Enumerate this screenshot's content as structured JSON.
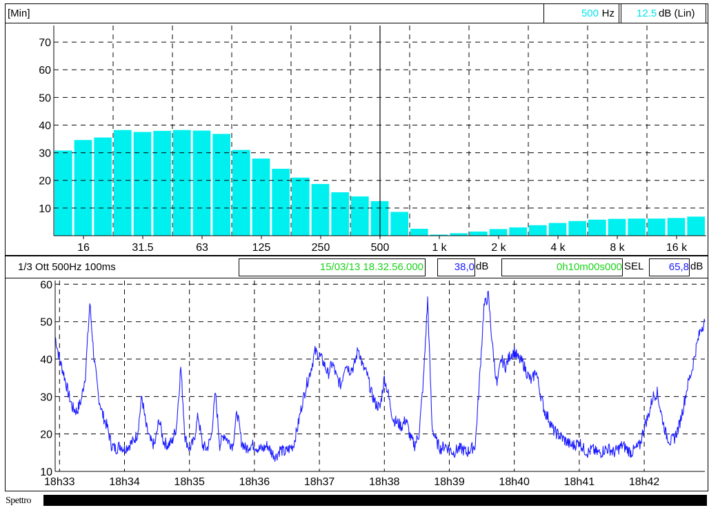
{
  "top_bar": {
    "mode": "[Min]",
    "freq_value": "500",
    "freq_unit": "Hz",
    "level_value": "12.5",
    "level_unit": "dB (Lin)"
  },
  "mid_bar": {
    "mode": "1/3 Ott 500Hz 100ms",
    "timestamp": "15/03/13 18.32.56.000",
    "level_value": "38,0",
    "level_unit": "dB",
    "duration": "0h10m00s000",
    "sel_label": "SEL",
    "sel_value": "65,8",
    "sel_unit": "dB"
  },
  "bottom_bar": {
    "label": "Spettro"
  },
  "colors": {
    "bar_fill": "#00f0f0",
    "line": "#1a1aff",
    "cursor_text": "#00e5ee",
    "green_text": "#19d319",
    "blue_text": "#1a1aff"
  },
  "chart_data": [
    {
      "type": "bar",
      "title": "",
      "xlabel": "",
      "ylabel": "",
      "scale_x": "log (1/3 octave bands)",
      "ylim": [
        0,
        76
      ],
      "yticks": [
        "10",
        "20",
        "30",
        "40",
        "50",
        "60",
        "70"
      ],
      "xtick_labels": [
        "16",
        "31.5",
        "63",
        "125",
        "250",
        "500",
        "1 k",
        "2 k",
        "4 k",
        "8 k",
        "16 k"
      ],
      "grid": true,
      "cursor_band": "500",
      "categories": [
        "12.5",
        "16",
        "20",
        "25",
        "31.5",
        "40",
        "50",
        "63",
        "80",
        "100",
        "125",
        "160",
        "200",
        "250",
        "315",
        "400",
        "500",
        "630",
        "800",
        "1k",
        "1.25k",
        "1.6k",
        "2k",
        "2.5k",
        "3.15k",
        "4k",
        "5k",
        "6.3k",
        "8k",
        "10k",
        "12.5k",
        "16k",
        "20k"
      ],
      "values": [
        30.8,
        34.6,
        35.5,
        38.2,
        37.5,
        37.9,
        38.2,
        38.0,
        36.8,
        31.0,
        27.9,
        24.2,
        21.0,
        18.7,
        15.7,
        14.2,
        12.5,
        8.6,
        2.5,
        0.4,
        0.9,
        1.5,
        2.4,
        3.0,
        3.8,
        4.6,
        5.3,
        5.8,
        6.1,
        6.2,
        6.2,
        6.4,
        6.9
      ]
    },
    {
      "type": "line",
      "title": "",
      "xlabel": "",
      "ylabel": "",
      "ylim": [
        10,
        61
      ],
      "yticks": [
        "10",
        "20",
        "30",
        "40",
        "50",
        "60"
      ],
      "x_ticks": [
        "18h33",
        "18h34",
        "18h35",
        "18h36",
        "18h37",
        "18h38",
        "18h39",
        "18h40",
        "18h41",
        "18h42"
      ],
      "x_range_seconds_from_18h32m56s": [
        0,
        600
      ],
      "grid": true,
      "series": [
        {
          "x": [
            0,
            4,
            8,
            12,
            16,
            20,
            24,
            28,
            32,
            36,
            40,
            44,
            48,
            52,
            56,
            60,
            64,
            68,
            72,
            76,
            80,
            84,
            88,
            92,
            96,
            100,
            104,
            108,
            112,
            116,
            120,
            124,
            128,
            132,
            136,
            140,
            144,
            148,
            152,
            156,
            160,
            164,
            168,
            172,
            176,
            180,
            184,
            188,
            192,
            196,
            200,
            204,
            208,
            212,
            216,
            220,
            224,
            228,
            232,
            236,
            240,
            244,
            248,
            252,
            256,
            260,
            264,
            268,
            272,
            276,
            280,
            284,
            288,
            292,
            296,
            300,
            304,
            308,
            312,
            316,
            320,
            324,
            328,
            332,
            336,
            340,
            344,
            348,
            352,
            356,
            360,
            364,
            368,
            372,
            376,
            380,
            384,
            388,
            392,
            396,
            400,
            404,
            408,
            412,
            416,
            420,
            424,
            428,
            432,
            436,
            440,
            444,
            448,
            452,
            456,
            460,
            464,
            468,
            472,
            476,
            480,
            484,
            488,
            492,
            496,
            500,
            504,
            508,
            512,
            516,
            520,
            524,
            528,
            532,
            536,
            540,
            544,
            548,
            552,
            556,
            560,
            564,
            568,
            572,
            576,
            580,
            584,
            588,
            592,
            596,
            600
          ],
          "values": [
            46,
            40,
            36,
            31,
            27,
            26,
            29,
            36,
            55,
            40,
            30,
            25,
            22,
            17,
            16,
            17,
            16,
            17,
            18,
            20,
            30,
            22,
            18,
            17,
            24,
            18,
            17,
            18,
            22,
            38,
            19,
            16,
            18,
            25,
            17,
            16,
            19,
            31,
            17,
            20,
            18,
            17,
            26,
            18,
            16,
            17,
            17,
            16,
            16,
            17,
            15,
            14,
            16,
            15,
            16,
            17,
            22,
            28,
            33,
            37,
            42,
            41,
            39,
            36,
            39,
            35,
            33,
            39,
            37,
            38,
            43,
            38,
            36,
            31,
            28,
            27,
            35,
            30,
            24,
            23,
            22,
            24,
            19,
            17,
            20,
            34,
            56,
            22,
            18,
            16,
            17,
            16,
            15,
            16,
            16,
            15,
            16,
            17,
            35,
            54,
            57,
            43,
            33,
            40,
            38,
            41,
            42,
            40,
            39,
            36,
            34,
            37,
            31,
            26,
            24,
            21,
            20,
            19,
            18,
            17,
            17,
            18,
            16,
            15,
            16,
            15,
            15,
            16,
            16,
            15,
            16,
            17,
            16,
            15,
            16,
            17,
            22,
            25,
            30,
            31,
            25,
            20,
            18,
            19,
            22,
            27,
            33,
            37,
            43,
            48,
            50
          ]
        }
      ]
    }
  ]
}
